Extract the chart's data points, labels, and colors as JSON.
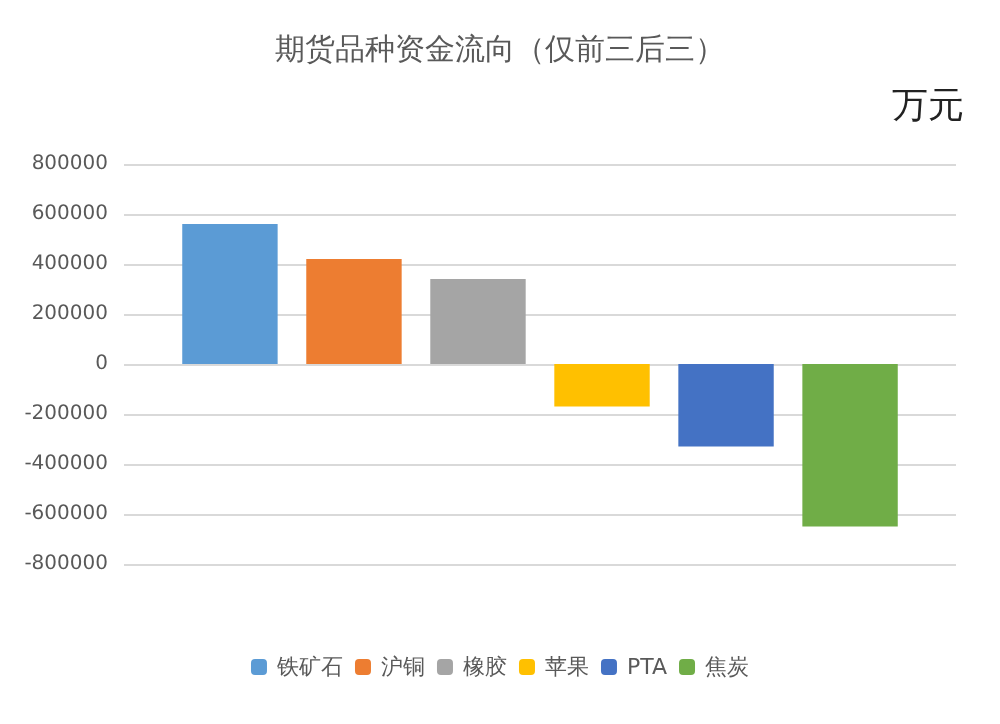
{
  "chart_data": {
    "type": "bar",
    "title": "期货品种资金流向（仅前三后三）",
    "annotations": [
      "万元"
    ],
    "categories": [
      null
    ],
    "series": [
      {
        "name": "铁矿石",
        "color": "#5b9bd5",
        "values": [
          560000
        ]
      },
      {
        "name": "沪铜",
        "color": "#ed7d31",
        "values": [
          420000
        ]
      },
      {
        "name": "橡胶",
        "color": "#a5a5a5",
        "values": [
          340000
        ]
      },
      {
        "name": "苹果",
        "color": "#ffc000",
        "values": [
          -170000
        ]
      },
      {
        "name": "PTA",
        "color": "#4472c4",
        "values": [
          -330000
        ]
      },
      {
        "name": "焦炭",
        "color": "#70ad47",
        "values": [
          -650000
        ]
      }
    ],
    "ylim": [
      -800000,
      800000
    ],
    "yticks": [
      -800000,
      -600000,
      -400000,
      -200000,
      0,
      200000,
      400000,
      600000,
      800000
    ],
    "grid": "y",
    "legend": "bottom"
  }
}
